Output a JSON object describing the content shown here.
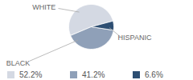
{
  "chart_data": {
    "type": "pie",
    "categories": [
      "WHITE",
      "BLACK",
      "HISPANIC"
    ],
    "values": [
      52.2,
      41.2,
      6.6
    ],
    "value_labels": [
      "52.2%",
      "41.2%",
      "6.6%"
    ],
    "colors": [
      "#d4d9e3",
      "#8fa0b8",
      "#2d4e72"
    ],
    "legend": "bottom"
  }
}
